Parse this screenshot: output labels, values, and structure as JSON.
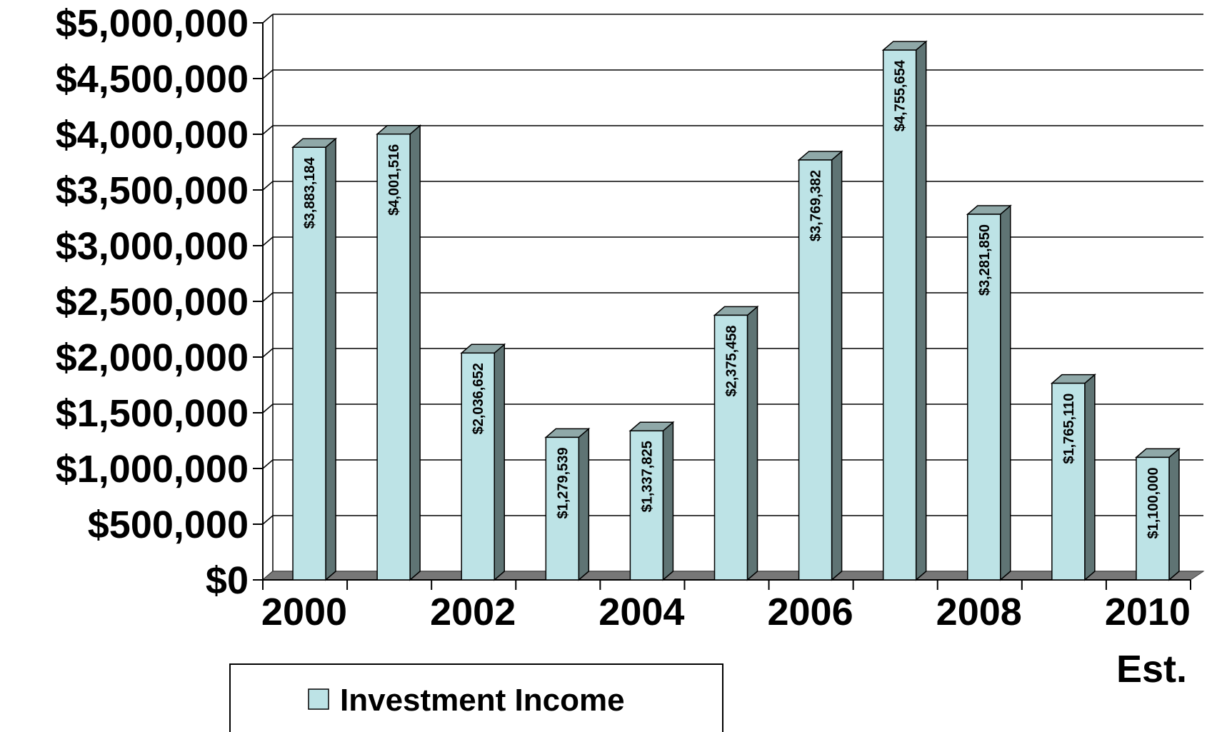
{
  "chart_data": {
    "type": "bar",
    "categories": [
      "2000",
      "2001",
      "2002",
      "2003",
      "2004",
      "2005",
      "2006",
      "2007",
      "2008",
      "2009",
      "2010 Est."
    ],
    "x_tick_labels": [
      "2000",
      "2002",
      "2004",
      "2006",
      "2008",
      "2010"
    ],
    "x_tick_extra": "Est.",
    "series": [
      {
        "name": "Investment Income",
        "values": [
          3883184,
          4001516,
          2036652,
          1279539,
          1337825,
          2375458,
          3769382,
          4755654,
          3281850,
          1765110,
          1100000
        ],
        "data_labels": [
          "$3,883,184",
          "$4,001,516",
          "$2,036,652",
          "$1,279,539",
          "$1,337,825",
          "$2,375,458",
          "$3,769,382",
          "$4,755,654",
          "$3,281,850",
          "$1,765,110",
          "$1,100,000"
        ]
      }
    ],
    "y_ticks": [
      0,
      500000,
      1000000,
      1500000,
      2000000,
      2500000,
      3000000,
      3500000,
      4000000,
      4500000,
      5000000
    ],
    "y_tick_labels": [
      "$0",
      "$500,000",
      "$1,000,000",
      "$1,500,000",
      "$2,000,000",
      "$2,500,000",
      "$3,000,000",
      "$3,500,000",
      "$4,000,000",
      "$4,500,000",
      "$5,000,000"
    ],
    "ylim": [
      0,
      5000000
    ],
    "grid": true,
    "legend": "bottom-left",
    "colors": {
      "bar_front": "#bde3e6",
      "bar_side": "#5f7474",
      "bar_top": "#8fa8a8",
      "floor": "#777777",
      "grid": "#000000"
    }
  }
}
